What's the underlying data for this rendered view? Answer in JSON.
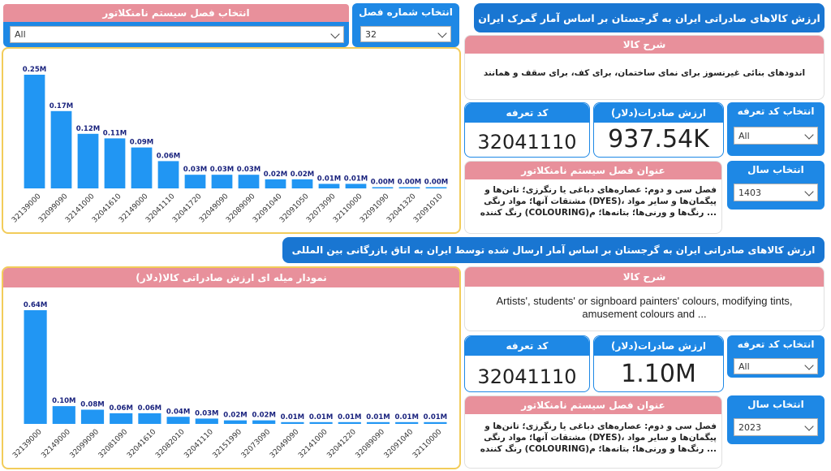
{
  "top": {
    "banner": "ارزش کالاهای صادراتی ایران به گرجستان بر اساس آمار گمرک ایران",
    "slicer_chapter_system": {
      "title": "انتخاب فصل سیستم نامنکلاتور",
      "value": "All"
    },
    "slicer_chapter_number": {
      "title": "انتخاب شماره فصل",
      "value": "32"
    },
    "goods_desc": {
      "title": "شرح کالا",
      "text": "اندودهای بنائی غیرنسوز برای نمای ساختمان، برای کف، برای سقف و همانند"
    },
    "kpi_tariff": {
      "title": "کد تعرفه",
      "value": "32041110"
    },
    "kpi_export": {
      "title": "ارزش صادرات(دلار)",
      "value": "937.54K"
    },
    "slicer_tariff": {
      "title": "انتخاب کد تعرفه",
      "value": "All"
    },
    "chapter_title": {
      "title": "عنوان فصل سیستم نامنکلاتور",
      "line1": "فصل سی و دوم: عصاره‌های دباغی یا رنگرزی؛ تانن‌ها و",
      "line2": "پیگمان‌ها و سایر مواد ،(DYES) مشتقات آنها؛ مواد رنگی",
      "line3": "... رنگ‌ها و ورنی‌ها؛ بتانه‌ها؛ م(COLOURING) رنگ کننده"
    },
    "slicer_year": {
      "title": "انتخاب سال",
      "value": "1403"
    }
  },
  "bottom": {
    "banner": "ارزش کالاهای صادراتی ایران به گرجستان بر اساس آمار ارسال شده توسط ایران به اتاق بازرگانی بین المللی",
    "chart_title": "نمودار میله ای ارزش صادراتی کالا(دلار)",
    "goods_desc": {
      "title": "شرح کالا",
      "line1": "Artists', students' or signboard painters' colours, modifying tints,",
      "line2": "amusement colours and ..."
    },
    "kpi_tariff": {
      "title": "کد تعرفه",
      "value": "32041110"
    },
    "kpi_export": {
      "title": "ارزش صادرات(دلار)",
      "value": "1.10M"
    },
    "slicer_tariff": {
      "title": "انتخاب کد تعرفه",
      "value": "All"
    },
    "chapter_title": {
      "title": "عنوان فصل سیستم نامنکلاتور",
      "line1": "فصل سی و دوم: عصاره‌های دباغی یا رنگرزی؛ تانن‌ها و",
      "line2": "پیگمان‌ها و سایر مواد ،(DYES) مشتقات آنها؛ مواد رنگی",
      "line3": "... رنگ‌ها و ورنی‌ها؛ بتانه‌ها؛ م(COLOURING) رنگ کننده"
    },
    "slicer_year": {
      "title": "انتخاب سال",
      "value": "2023"
    }
  },
  "colors": {
    "banner": "#1976d2",
    "pink": "#e8909b",
    "bar": "#2196f3",
    "label": "#1a237e",
    "chart_border": "#f2cc5a"
  },
  "chart_data": [
    {
      "type": "bar",
      "categories": [
        "32139000",
        "32099090",
        "32141000",
        "32041610",
        "32149000",
        "32041110",
        "32041720",
        "32049090",
        "32089090",
        "32091040",
        "32091050",
        "32073090",
        "32110000",
        "32091090",
        "32041320",
        "32091010"
      ],
      "values": [
        250000,
        170000,
        120000,
        110000,
        90000,
        60000,
        30000,
        30000,
        30000,
        20000,
        20000,
        10000,
        10000,
        0,
        0,
        0
      ],
      "labels": [
        "0.25M",
        "0.17M",
        "0.12M",
        "0.11M",
        "0.09M",
        "0.06M",
        "0.03M",
        "0.03M",
        "0.03M",
        "0.02M",
        "0.02M",
        "0.01M",
        "0.01M",
        "0.00M",
        "0.00M",
        "0.00M"
      ]
    },
    {
      "type": "bar",
      "title": "نمودار میله ای ارزش صادراتی کالا(دلار)",
      "categories": [
        "32139000",
        "32149000",
        "32099090",
        "32081090",
        "32041610",
        "32082010",
        "32041110",
        "32151990",
        "32073090",
        "32049090",
        "32141000",
        "32041220",
        "32089090",
        "32091040",
        "32110000"
      ],
      "values": [
        640000,
        100000,
        80000,
        60000,
        60000,
        40000,
        30000,
        20000,
        20000,
        10000,
        10000,
        10000,
        10000,
        10000,
        10000
      ],
      "labels": [
        "0.64M",
        "0.10M",
        "0.08M",
        "0.06M",
        "0.06M",
        "0.04M",
        "0.03M",
        "0.02M",
        "0.02M",
        "0.01M",
        "0.01M",
        "0.01M",
        "0.01M",
        "0.01M",
        "0.01M"
      ]
    }
  ]
}
